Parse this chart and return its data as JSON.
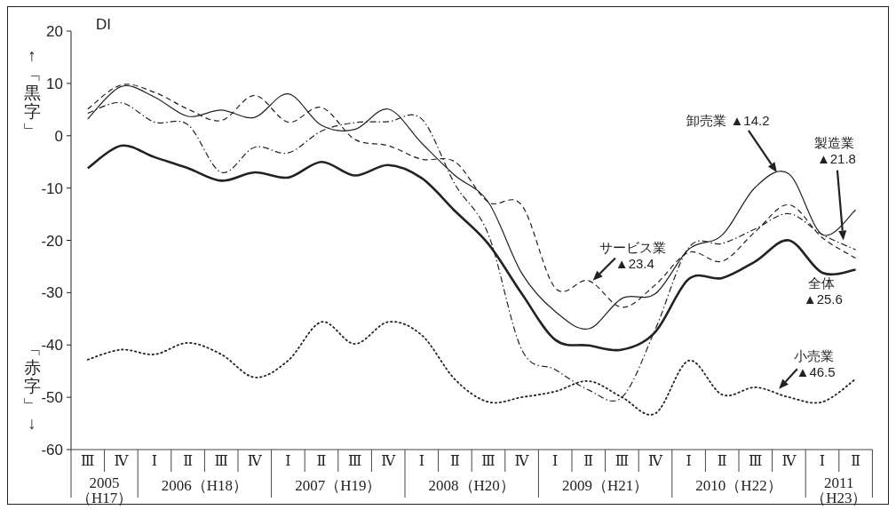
{
  "chart_data": {
    "type": "line",
    "ylabel": "DI",
    "categories": [
      "Ⅲ",
      "Ⅳ",
      "Ⅰ",
      "Ⅱ",
      "Ⅲ",
      "Ⅳ",
      "Ⅰ",
      "Ⅱ",
      "Ⅲ",
      "Ⅳ",
      "Ⅰ",
      "Ⅱ",
      "Ⅲ",
      "Ⅳ",
      "Ⅰ",
      "Ⅱ",
      "Ⅲ",
      "Ⅳ",
      "Ⅰ",
      "Ⅱ",
      "Ⅲ",
      "Ⅳ",
      "Ⅰ",
      "Ⅱ"
    ],
    "series": [
      {
        "color": "#222222",
        "line_style": "solid",
        "values": [
          -6.2,
          -1.9,
          -4.1,
          -6.2,
          -8.6,
          -7.0,
          -8.0,
          -5.0,
          -7.6,
          -5.6,
          -8.1,
          -14.4,
          -20.7,
          -30.2,
          -39.0,
          -40.1,
          -40.9,
          -37.5,
          -27.4,
          -27.2,
          -24.0,
          -20.0,
          -26.2,
          -25.6
        ]
      },
      {
        "color": "#222222",
        "line_style": "solid",
        "values": [
          3.2,
          9.4,
          7.4,
          3.7,
          4.9,
          3.5,
          8.0,
          2.0,
          1.2,
          5.1,
          -1.4,
          -7.6,
          -12.7,
          -26.3,
          -33.6,
          -36.9,
          -31.1,
          -30.2,
          -21.7,
          -19.0,
          -9.8,
          -7.3,
          -18.9,
          -14.2
        ]
      },
      {
        "color": "#222222",
        "line_style": "dashdot",
        "values": [
          4.3,
          6.3,
          2.6,
          2.1,
          -7.0,
          -2.2,
          -3.3,
          0.9,
          2.5,
          2.7,
          3.2,
          -9.3,
          -18.9,
          -40.9,
          -44.7,
          -48.6,
          -50.0,
          -37.0,
          -21.4,
          -20.6,
          -17.8,
          -14.9,
          -18.9,
          -21.8
        ]
      },
      {
        "color": "#222222",
        "line_style": "dashed",
        "values": [
          5.1,
          9.7,
          8.3,
          5.1,
          2.9,
          7.7,
          2.6,
          5.4,
          -0.7,
          -1.9,
          -4.5,
          -5.0,
          -12.7,
          -13.3,
          -29.1,
          -27.7,
          -32.8,
          -28.5,
          -22.3,
          -24.0,
          -18.3,
          -13.2,
          -19.5,
          -23.4
        ]
      },
      {
        "color": "#222222",
        "line_style": "dotted",
        "values": [
          -42.8,
          -40.9,
          -41.8,
          -39.6,
          -41.8,
          -46.2,
          -43.0,
          -35.6,
          -39.8,
          -35.6,
          -38.1,
          -46.6,
          -50.9,
          -50.0,
          -48.9,
          -46.9,
          -50.0,
          -53.1,
          -43.0,
          -49.5,
          -48.1,
          -50.0,
          -50.9,
          -46.5
        ]
      }
    ],
    "ylim": [
      -60,
      20
    ],
    "yticks": [
      -60,
      -50,
      -40,
      -30,
      -20,
      -10,
      0,
      10,
      20
    ],
    "annotations": [
      "↑「黒字」",
      "「赤字」↓",
      "2005（H17）",
      "2006（H18）",
      "2007（H19）",
      "2008（H20）",
      "2009（H21）",
      "2010（H22）",
      "2011（H23）",
      "全体 ▲25.6",
      "卸売業 ▲14.2",
      "製造業 ▲21.8",
      "サービス業 ▲23.4",
      "小売業 ▲46.5"
    ]
  }
}
